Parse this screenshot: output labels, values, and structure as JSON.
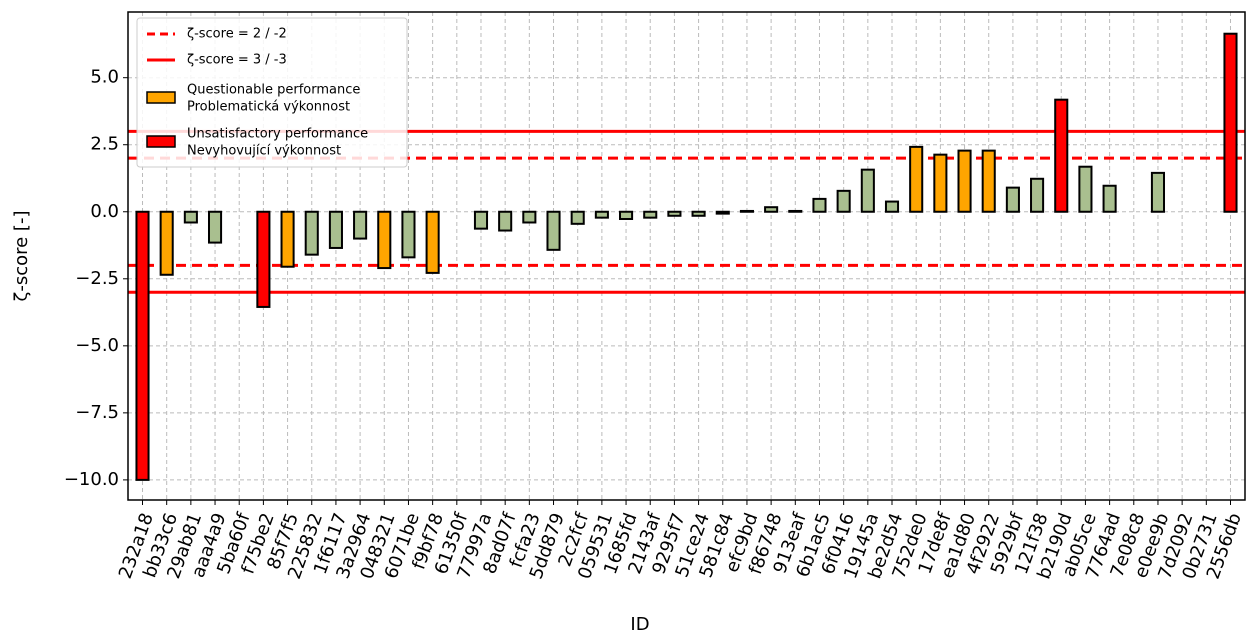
{
  "chart_data": {
    "type": "bar",
    "xlabel": "ID",
    "ylabel": "ζ-score [-]",
    "categories": [
      "232a18",
      "bb33c6",
      "29ab81",
      "aaa4a9",
      "5ba60f",
      "f75be2",
      "85f7f5",
      "225832",
      "1f6117",
      "3a2964",
      "048321",
      "6071be",
      "f9bf78",
      "61350f",
      "77997a",
      "8ad07f",
      "fcfa23",
      "5dd879",
      "2c2fcf",
      "059531",
      "1685fd",
      "2143af",
      "9295f7",
      "51ce24",
      "581c84",
      "efc9bd",
      "f86748",
      "913eaf",
      "6b1ac5",
      "6f0416",
      "19145a",
      "be2d54",
      "752de0",
      "17de8f",
      "ea1d80",
      "4f2922",
      "5929bf",
      "121f38",
      "b2190d",
      "ab05ce",
      "7764ad",
      "7e08c8",
      "e0ee9b",
      "7d2092",
      "0b2731",
      "2556db"
    ],
    "values": [
      -10.0,
      -2.35,
      -0.4,
      -1.15,
      0.0,
      -3.55,
      -2.05,
      -1.6,
      -1.35,
      -1.0,
      -2.1,
      -1.7,
      -2.28,
      0.0,
      -0.63,
      -0.7,
      -0.4,
      -1.42,
      -0.45,
      -0.22,
      -0.27,
      -0.22,
      -0.15,
      -0.15,
      -0.07,
      0.03,
      0.17,
      0.03,
      0.48,
      0.78,
      1.57,
      0.38,
      2.42,
      2.13,
      2.28,
      2.28,
      0.9,
      1.23,
      4.18,
      1.68,
      0.97,
      0.0,
      1.45,
      0.0,
      0.0,
      6.64
    ],
    "colors": [
      "#ff0000",
      "#ffa500",
      "#a9bf8f",
      "#a9bf8f",
      "#a9bf8f",
      "#ff0000",
      "#ffa500",
      "#a9bf8f",
      "#a9bf8f",
      "#a9bf8f",
      "#ffa500",
      "#a9bf8f",
      "#ffa500",
      "#a9bf8f",
      "#a9bf8f",
      "#a9bf8f",
      "#a9bf8f",
      "#a9bf8f",
      "#a9bf8f",
      "#a9bf8f",
      "#a9bf8f",
      "#a9bf8f",
      "#a9bf8f",
      "#a9bf8f",
      "#a9bf8f",
      "#a9bf8f",
      "#a9bf8f",
      "#a9bf8f",
      "#a9bf8f",
      "#a9bf8f",
      "#a9bf8f",
      "#a9bf8f",
      "#ffa500",
      "#ffa500",
      "#ffa500",
      "#ffa500",
      "#a9bf8f",
      "#a9bf8f",
      "#ff0000",
      "#a9bf8f",
      "#a9bf8f",
      "#a9bf8f",
      "#a9bf8f",
      "#a9bf8f",
      "#a9bf8f",
      "#ff0000"
    ],
    "ylim": [
      -10.75,
      7.45
    ],
    "yticks": [
      {
        "value": -10,
        "label": "−10.0"
      },
      {
        "value": -7.5,
        "label": "−7.5"
      },
      {
        "value": -5,
        "label": "−5.0"
      },
      {
        "value": -2.5,
        "label": "−2.5"
      },
      {
        "value": 0,
        "label": "0.0"
      },
      {
        "value": 2.5,
        "label": "2.5"
      },
      {
        "value": 5,
        "label": "5.0"
      }
    ],
    "grid": true,
    "reference_lines": [
      {
        "label": "ζ-score = 2 / -2",
        "values": [
          2,
          -2
        ],
        "style": "dashed",
        "color": "#ff0000"
      },
      {
        "label": "ζ-score = 3 / -3",
        "values": [
          3,
          -3
        ],
        "style": "solid",
        "color": "#ff0000"
      }
    ],
    "legend_patches": [
      {
        "lines": [
          "Questionable performance",
          "Problematická výkonnost"
        ],
        "color": "#ffa500"
      },
      {
        "lines": [
          "Unsatisfactory performance",
          "Nevyhovující výkonnost"
        ],
        "color": "#ff0000"
      }
    ],
    "legend": "upper left"
  }
}
